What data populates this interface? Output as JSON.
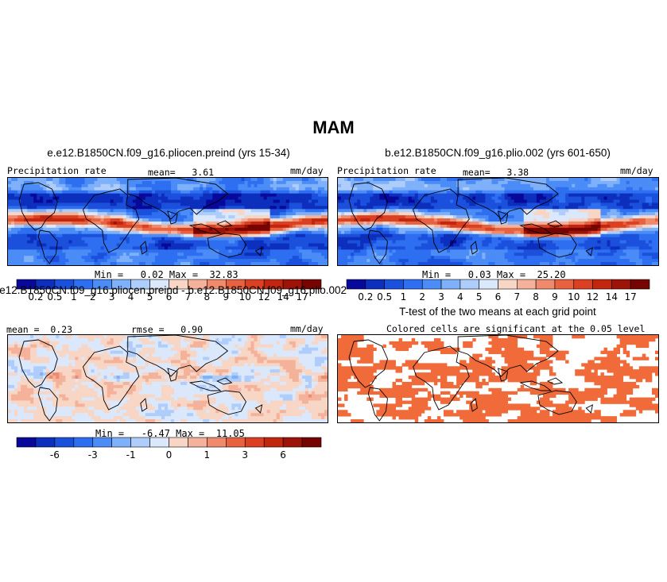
{
  "season": "MAM",
  "chart_data": [
    {
      "type": "heatmap",
      "title": "e.e12.B1850CN.f09_g16.pliocen.preind (yrs 15-34)",
      "left_label": "Precipitation rate",
      "units": "mm/day",
      "mean_text": "mean=   3.61",
      "minmax_text": "Min =   0.02 Max =  32.83",
      "min": 0.02,
      "max": 32.83,
      "mean": 3.61,
      "levels": [
        "0.2",
        "0.5",
        "1",
        "2",
        "3",
        "4",
        "5",
        "6",
        "7",
        "8",
        "9",
        "10",
        "12",
        "14",
        "17"
      ],
      "colors": [
        "#08089a",
        "#0c2fbd",
        "#1b50dc",
        "#2e6ef0",
        "#4b8cf7",
        "#7fb1fa",
        "#aecdfb",
        "#dbe8fb",
        "#f8d6c6",
        "#f4b29a",
        "#ef8a6c",
        "#e9623f",
        "#dc4022",
        "#c2260f",
        "#9d1308",
        "#760502"
      ]
    },
    {
      "type": "heatmap",
      "title": "b.e12.B1850CN.f09_g16.plio.002 (yrs 601-650)",
      "left_label": "Precipitation rate",
      "units": "mm/day",
      "mean_text": "mean=   3.38",
      "minmax_text": "Min =   0.03 Max =  25.20",
      "min": 0.03,
      "max": 25.2,
      "mean": 3.38,
      "levels": [
        "0.2",
        "0.5",
        "1",
        "2",
        "3",
        "4",
        "5",
        "6",
        "7",
        "8",
        "9",
        "10",
        "12",
        "14",
        "17"
      ],
      "colors": [
        "#08089a",
        "#0c2fbd",
        "#1b50dc",
        "#2e6ef0",
        "#4b8cf7",
        "#7fb1fa",
        "#aecdfb",
        "#dbe8fb",
        "#f8d6c6",
        "#f4b29a",
        "#ef8a6c",
        "#e9623f",
        "#dc4022",
        "#c2260f",
        "#9d1308",
        "#760502"
      ]
    },
    {
      "type": "heatmap",
      "title": "e.e12.B1850CN.f09_g16.pliocen.preind - b.e12.B1850CN.f09_g16.plio.002",
      "left_label": "mean =  0.23",
      "center_label": "rmse =   0.90",
      "units": "mm/day",
      "minmax_text": "Min =   -6.47 Max =  11.05",
      "min": -6.47,
      "max": 11.05,
      "mean": 0.23,
      "rmse": 0.9,
      "levels": [
        "",
        "-6",
        "",
        "-3",
        "",
        "-1",
        "",
        "0",
        "",
        "1",
        "",
        "3",
        "",
        "6",
        ""
      ],
      "colors": [
        "#08089a",
        "#0c2fbd",
        "#1b50dc",
        "#2e6ef0",
        "#4b8cf7",
        "#7fb1fa",
        "#aecdfb",
        "#dbe8fb",
        "#f8d6c6",
        "#f4b29a",
        "#ef8a6c",
        "#e9623f",
        "#dc4022",
        "#c2260f",
        "#9d1308",
        "#760502"
      ]
    },
    {
      "type": "heatmap",
      "title": "T-test of the two means at each grid point",
      "subtitle": "Colored cells are significant at the 0.05 level",
      "significance_level": 0.05,
      "significant_color": "#f06a3a"
    }
  ]
}
